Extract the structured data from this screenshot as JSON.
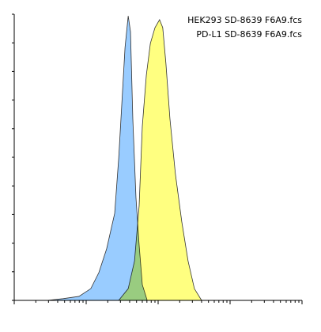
{
  "chart_data": {
    "type": "area",
    "legend_position": "upper right",
    "xlim": [
      0,
      100
    ],
    "ylim": [
      0,
      100
    ],
    "yticks": [
      0,
      10,
      20,
      30,
      40,
      50,
      60,
      70,
      80,
      90,
      100
    ],
    "xticks": [
      0,
      7.5,
      11.9,
      15.1,
      17.5,
      19.5,
      21.1,
      22.6,
      23.9,
      25,
      32.5,
      36.9,
      40.1,
      42.5,
      44.5,
      46.1,
      47.6,
      48.9,
      50,
      57.5,
      61.9,
      65.1,
      67.5,
      69.5,
      71.1,
      72.6,
      73.9,
      75,
      82.5,
      86.9,
      90.1,
      92.5,
      94.5,
      96.1,
      97.6,
      98.9,
      100
    ],
    "series": [
      {
        "name": "HEK293 SD-8639 F6A9.fcs",
        "color": "#99ccff",
        "x": [
          11.5,
          17,
          22.5,
          26.6,
          29.4,
          32.1,
          34.9,
          36.3,
          37.4,
          38.5,
          39.6,
          40.4,
          41.2,
          42.3,
          43.4,
          44.5,
          46.2
        ],
        "values": [
          0,
          0.6,
          1.4,
          4.1,
          9.7,
          18,
          30.4,
          49.7,
          69,
          88.4,
          99.4,
          93.9,
          63.5,
          35.9,
          19.3,
          5.5,
          0
        ]
      },
      {
        "name": "PD-L1 SD-8639 F6A9.fcs",
        "color": "#ffff80",
        "x": [
          36.3,
          39.6,
          41.8,
          43.4,
          44.5,
          45.9,
          47.3,
          48.9,
          50.5,
          51.6,
          52.7,
          54.1,
          56,
          58.2,
          60.4,
          62.6,
          65.1
        ],
        "values": [
          0,
          4.1,
          13.8,
          33.1,
          60.8,
          78.7,
          89.8,
          95.3,
          98.1,
          95.3,
          82.9,
          63.5,
          44.2,
          27.6,
          13.8,
          4.1,
          0
        ]
      }
    ]
  }
}
